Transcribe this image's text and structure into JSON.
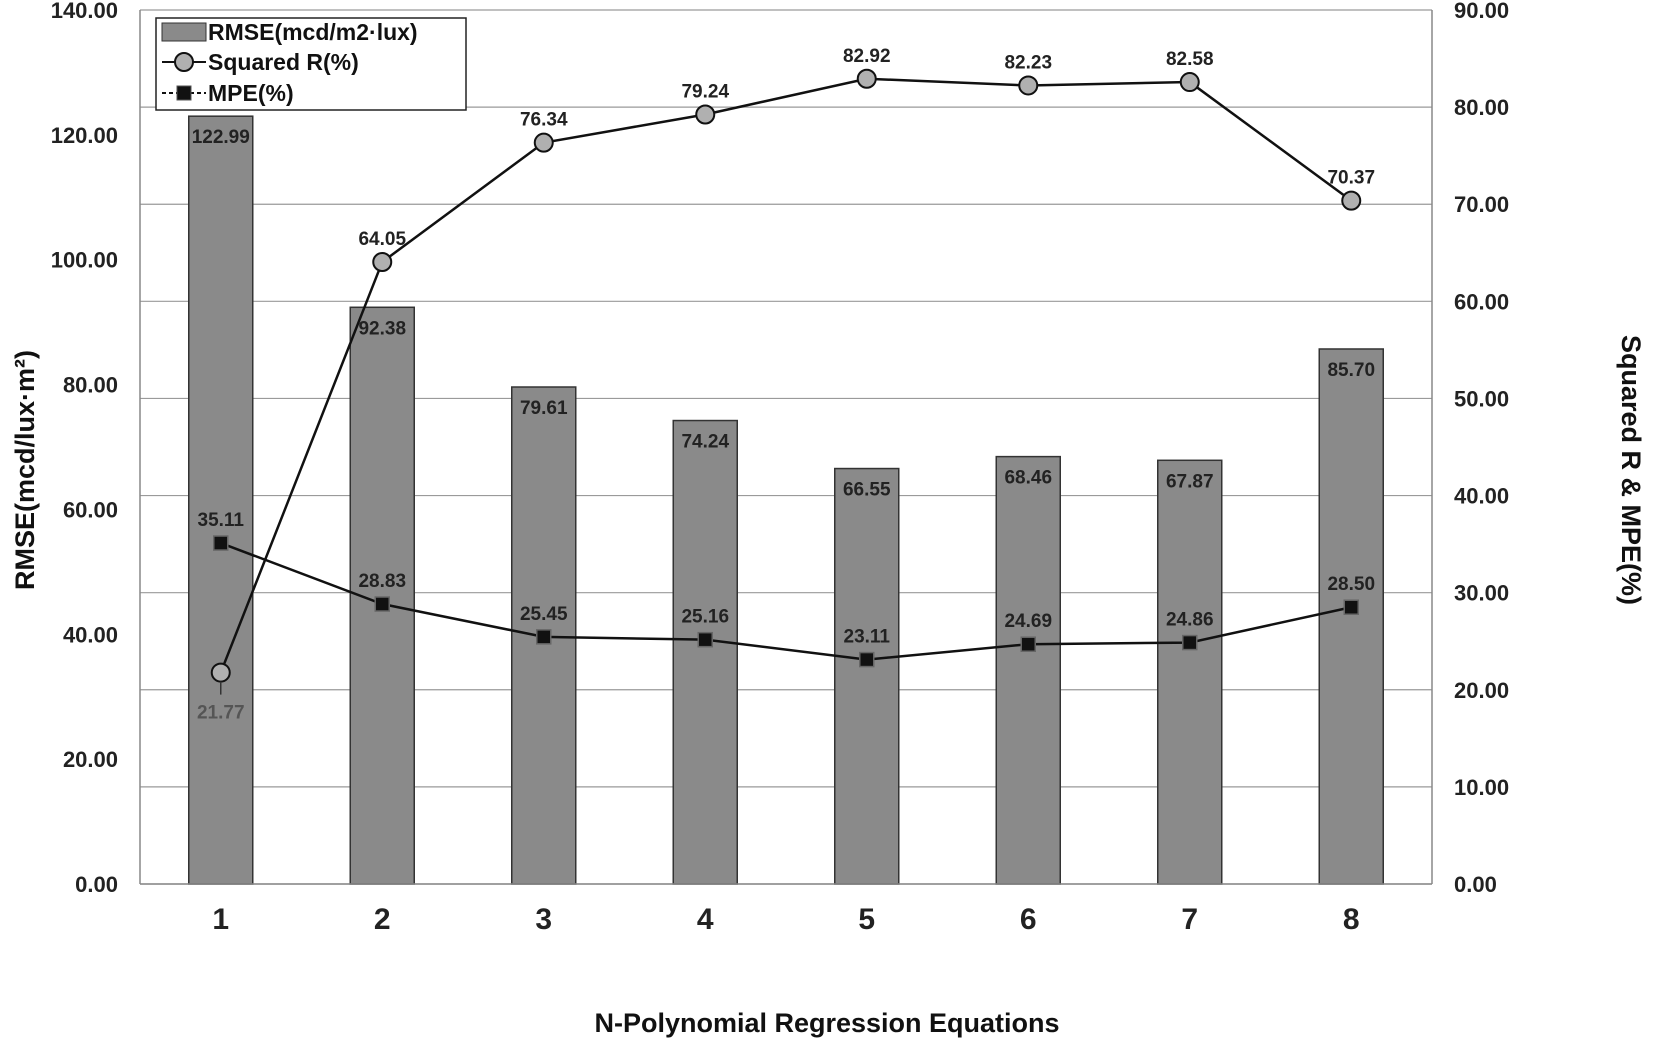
{
  "chart_data": {
    "type": "bar",
    "categories": [
      "1",
      "2",
      "3",
      "4",
      "5",
      "6",
      "7",
      "8"
    ],
    "xlabel": "N-Polynomial Regression Equations",
    "ylabel": "RMSE(mcd/lux·m²)",
    "ylabel_right": "Squared R & MPE(%)",
    "ylim": [
      0,
      140
    ],
    "ylim_right": [
      0,
      90
    ],
    "yticks_left": [
      "0.00",
      "20.00",
      "40.00",
      "60.00",
      "80.00",
      "100.00",
      "120.00",
      "140.00"
    ],
    "yticks_right": [
      "0.00",
      "10.00",
      "20.00",
      "30.00",
      "40.00",
      "50.00",
      "60.00",
      "70.00",
      "80.00",
      "90.00"
    ],
    "grid": true,
    "legend_position": "top-left",
    "series": [
      {
        "name": "RMSE(mcd/m2·lux)",
        "type": "bar",
        "axis": "left",
        "values": [
          122.99,
          92.38,
          79.61,
          74.24,
          66.55,
          68.46,
          67.87,
          85.7
        ],
        "labels": [
          "122.99",
          "92.38",
          "79.61",
          "74.24",
          "66.55",
          "68.46",
          "67.87",
          "85.70"
        ],
        "color": "#8a8a8a"
      },
      {
        "name": "Squared R(%)",
        "type": "line",
        "marker": "circle",
        "axis": "right",
        "values": [
          21.77,
          64.05,
          76.34,
          79.24,
          82.92,
          82.23,
          82.58,
          70.37
        ],
        "labels": [
          "21.77",
          "64.05",
          "76.34",
          "79.24",
          "82.92",
          "82.23",
          "82.58",
          "70.37"
        ],
        "color": "#b0b0b0"
      },
      {
        "name": "MPE(%)",
        "type": "line",
        "marker": "square",
        "axis": "right",
        "values": [
          35.11,
          28.83,
          25.45,
          25.16,
          23.11,
          24.69,
          24.86,
          28.5
        ],
        "labels": [
          "35.11",
          "28.83",
          "25.45",
          "25.16",
          "23.11",
          "24.69",
          "24.86",
          "28.50"
        ],
        "color": "#111111"
      }
    ]
  }
}
